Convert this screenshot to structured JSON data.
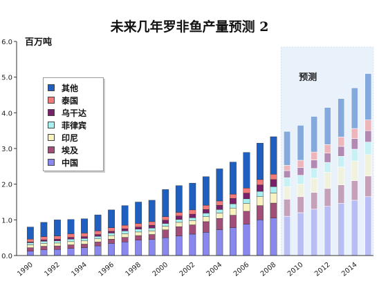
{
  "title": "未来几年罗非鱼产量预测 2",
  "unit_label": "百万吨",
  "forecast_label": "预测",
  "colors": {
    "其他": "#1f5fbf",
    "泰国": "#f27a7a",
    "乌干达": "#7a1f6a",
    "菲律宾": "#a8f0ef",
    "印尼": "#f7f2c0",
    "埃及": "#a14f78",
    "中国": "#8888ee",
    "forecast_band": "#e9f2fb"
  },
  "legend": [
    {
      "label": "其他",
      "color_key": "其他"
    },
    {
      "label": "泰国",
      "color_key": "泰国"
    },
    {
      "label": "乌干达",
      "color_key": "乌干达"
    },
    {
      "label": "菲律宾",
      "color_key": "菲律宾"
    },
    {
      "label": "印尼",
      "color_key": "印尼"
    },
    {
      "label": "埃及",
      "color_key": "埃及"
    },
    {
      "label": "中国",
      "color_key": "中国"
    }
  ],
  "chart_data": {
    "type": "bar",
    "stacked": true,
    "title": "未来几年罗非鱼产量预测 2",
    "ylabel": "百万吨",
    "ylim": [
      0,
      6
    ],
    "yticks": [
      "0.0",
      "1.0",
      "2.0",
      "3.0",
      "4.0",
      "5.0",
      "6.0"
    ],
    "x_tick_labels": [
      "1990",
      "1992",
      "1994",
      "1996",
      "1998",
      "2000",
      "2002",
      "2004",
      "2006",
      "2008",
      "2010",
      "2012",
      "2014"
    ],
    "categories": [
      "1990",
      "1991",
      "1992",
      "1993",
      "1994",
      "1995",
      "1996",
      "1997",
      "1998",
      "1999",
      "2000",
      "2001",
      "2002",
      "2003",
      "2004",
      "2005",
      "2006",
      "2007",
      "2008",
      "2009",
      "2010",
      "2011",
      "2012",
      "2013",
      "2014",
      "2015"
    ],
    "forecast_from": "2009",
    "grid": false,
    "legend_position": "top-left",
    "series": [
      {
        "name": "中国",
        "values": [
          0.12,
          0.16,
          0.17,
          0.2,
          0.22,
          0.27,
          0.34,
          0.38,
          0.43,
          0.45,
          0.5,
          0.55,
          0.6,
          0.65,
          0.72,
          0.78,
          0.88,
          1.0,
          1.05,
          1.1,
          1.2,
          1.3,
          1.38,
          1.46,
          1.55,
          1.65
        ]
      },
      {
        "name": "埃及",
        "values": [
          0.1,
          0.1,
          0.1,
          0.1,
          0.1,
          0.11,
          0.12,
          0.13,
          0.13,
          0.14,
          0.22,
          0.26,
          0.26,
          0.3,
          0.32,
          0.35,
          0.36,
          0.4,
          0.42,
          0.48,
          0.45,
          0.47,
          0.5,
          0.52,
          0.55,
          0.58
        ]
      },
      {
        "name": "印尼",
        "values": [
          0.08,
          0.08,
          0.08,
          0.09,
          0.09,
          0.09,
          0.1,
          0.1,
          0.1,
          0.1,
          0.1,
          0.12,
          0.12,
          0.14,
          0.15,
          0.2,
          0.22,
          0.25,
          0.28,
          0.35,
          0.35,
          0.4,
          0.45,
          0.5,
          0.55,
          0.6
        ]
      },
      {
        "name": "菲律宾",
        "values": [
          0.06,
          0.06,
          0.06,
          0.07,
          0.07,
          0.07,
          0.07,
          0.08,
          0.08,
          0.08,
          0.08,
          0.08,
          0.08,
          0.1,
          0.1,
          0.12,
          0.13,
          0.15,
          0.18,
          0.25,
          0.25,
          0.27,
          0.28,
          0.3,
          0.33,
          0.35
        ]
      },
      {
        "name": "乌干达",
        "values": [
          0.02,
          0.04,
          0.05,
          0.05,
          0.05,
          0.05,
          0.05,
          0.06,
          0.06,
          0.08,
          0.09,
          0.1,
          0.1,
          0.1,
          0.12,
          0.15,
          0.16,
          0.18,
          0.2,
          0.2,
          0.22,
          0.24,
          0.26,
          0.28,
          0.3,
          0.32
        ]
      },
      {
        "name": "泰国",
        "values": [
          0.08,
          0.09,
          0.09,
          0.1,
          0.1,
          0.1,
          0.1,
          0.1,
          0.1,
          0.1,
          0.1,
          0.1,
          0.12,
          0.12,
          0.12,
          0.12,
          0.14,
          0.15,
          0.15,
          0.15,
          0.2,
          0.22,
          0.24,
          0.26,
          0.28,
          0.3
        ]
      },
      {
        "name": "其他",
        "values": [
          0.34,
          0.4,
          0.45,
          0.4,
          0.4,
          0.45,
          0.5,
          0.55,
          0.6,
          0.6,
          0.76,
          0.75,
          0.75,
          0.8,
          0.9,
          0.9,
          1.0,
          1.02,
          1.05,
          0.95,
          0.98,
          1.0,
          1.04,
          1.08,
          1.14,
          1.3
        ]
      }
    ]
  }
}
